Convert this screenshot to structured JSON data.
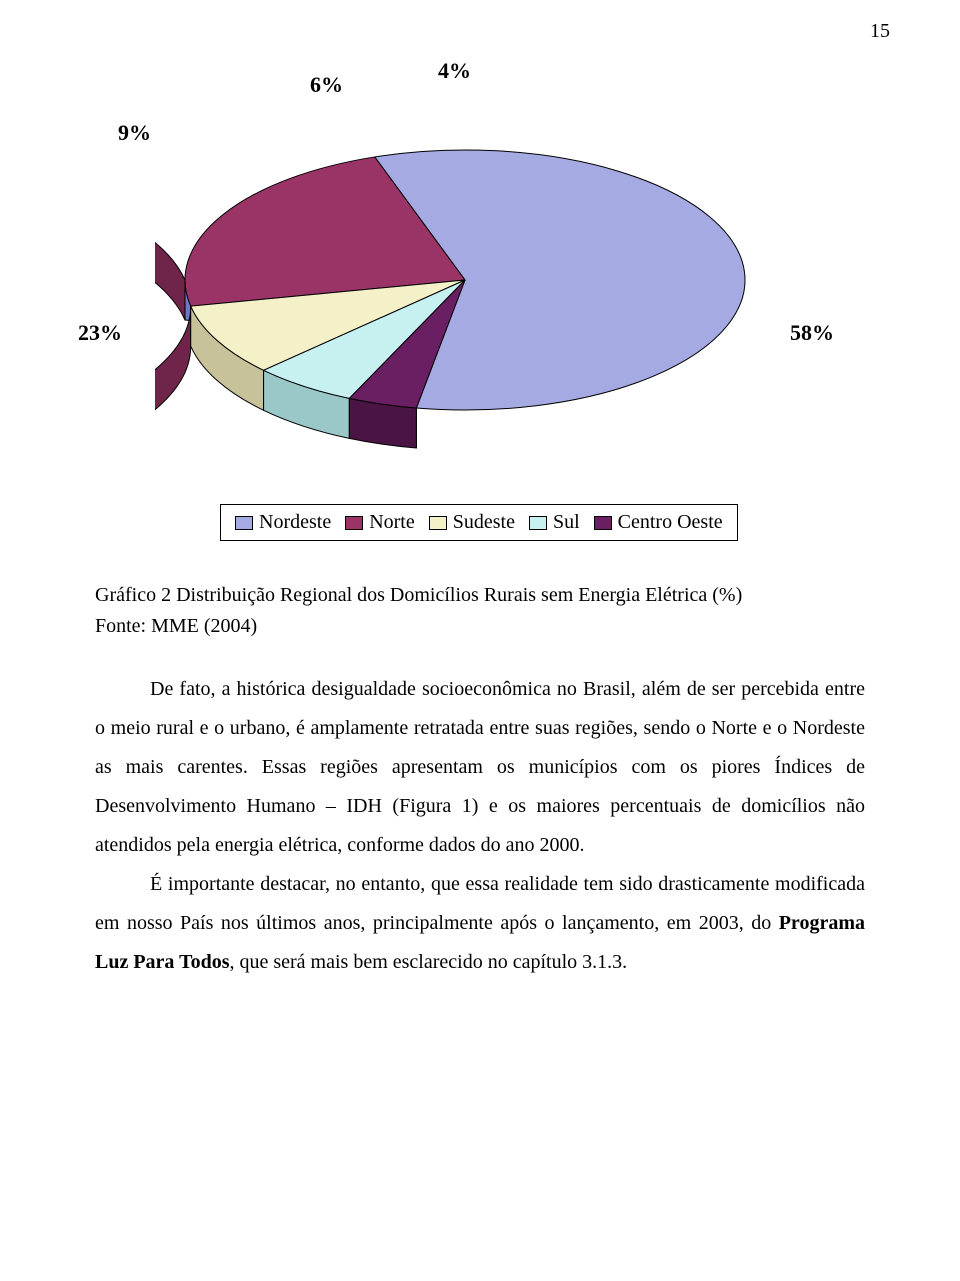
{
  "page_number": "15",
  "chart": {
    "type": "pie-3d",
    "background_color": "#ffffff",
    "slices": [
      {
        "label": "58%",
        "value": 58,
        "color": "#a5aae3",
        "side_color": "#6f77c9",
        "legend": "Nordeste"
      },
      {
        "label": "23%",
        "value": 23,
        "color": "#9a3466",
        "side_color": "#6e2549",
        "legend": "Norte"
      },
      {
        "label": "9%",
        "value": 9,
        "color": "#f4f0c7",
        "side_color": "#c7c29a",
        "legend": "Sudeste"
      },
      {
        "label": "6%",
        "value": 6,
        "color": "#c7f0f0",
        "side_color": "#9ac7c7",
        "legend": "Sul"
      },
      {
        "label": "4%",
        "value": 4,
        "color": "#6a1f63",
        "side_color": "#4a1545",
        "legend": "Centro Oeste"
      }
    ],
    "label_fontsize": 22,
    "label_fontweight": "bold",
    "legend_prefix": "□",
    "legend_fontsize": 20
  },
  "legend_items": [
    {
      "text": "Nordeste",
      "color": "#a5aae3"
    },
    {
      "text": "Norte",
      "color": "#9a3466"
    },
    {
      "text": "Sudeste",
      "color": "#f4f0c7"
    },
    {
      "text": "Sul",
      "color": "#c7f0f0"
    },
    {
      "text": "Centro Oeste",
      "color": "#6a1f63"
    }
  ],
  "caption": {
    "line1": "Gráfico 2 Distribuição Regional dos Domicílios Rurais sem Energia Elétrica (%)",
    "line2": "Fonte: MME (2004)"
  },
  "paragraphs": {
    "p1_a": "De fato, a histórica desigualdade socioeconômica no Brasil, além de ser percebida entre o meio rural e o urbano, é amplamente retratada entre suas regiões, sendo o Norte e o Nordeste as mais carentes. Essas regiões apresentam os municípios com os piores Índices de Desenvolvimento Humano – IDH (Figura 1) e os maiores percentuais de domicílios não atendidos pela energia elétrica, conforme dados do ano 2000.",
    "p2_a": "É importante destacar, no entanto, que essa realidade tem sido drasticamente modificada em nosso País nos últimos anos, principalmente após o lançamento, em 2003, do ",
    "p2_bold": "Programa Luz Para Todos",
    "p2_b": ", que será mais bem esclarecido no capítulo 3.1.3."
  }
}
